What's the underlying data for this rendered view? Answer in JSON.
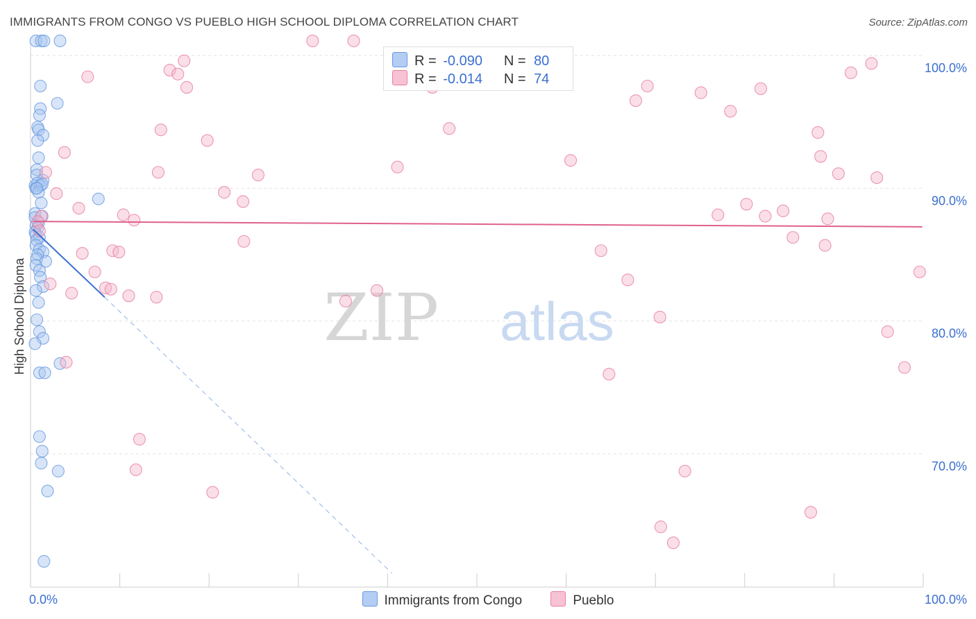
{
  "chart_data": {
    "type": "scatter",
    "title": "IMMIGRANTS FROM CONGO VS PUEBLO HIGH SCHOOL DIPLOMA CORRELATION CHART",
    "source": "Source: ZipAtlas.com",
    "ylabel": "High School Diploma",
    "xlim": [
      0,
      100
    ],
    "ylim": [
      60.5,
      102.5
    ],
    "x_tick_labels": [
      "0.0%",
      "100.0%"
    ],
    "y_ticks": [
      {
        "value": 100,
        "label": "100.0%"
      },
      {
        "value": 90,
        "label": "90.0%"
      },
      {
        "value": 80,
        "label": "80.0%"
      },
      {
        "value": 70,
        "label": "70.0%"
      }
    ],
    "watermark": {
      "zip": "ZIP",
      "atlas": "atlas"
    },
    "stats": [
      {
        "r_label": "R =",
        "r_value": "-0.090",
        "n_label": "N =",
        "n_value": "80"
      },
      {
        "r_label": "R =",
        "r_value": "-0.014",
        "n_label": "N =",
        "n_value": "74"
      }
    ],
    "series": [
      {
        "name": "Immigrants from Congo",
        "color": "#6699e0",
        "fill": "#a9c6f0",
        "trend": {
          "x0": 0.3,
          "y0": 86.9,
          "x1": 8.3,
          "y1": 81.8,
          "dash_x1": 40.5,
          "dash_y1": 61.0,
          "color": "#3a6fd0"
        },
        "points": [
          [
            0.6,
            101.1
          ],
          [
            1.2,
            101.1
          ],
          [
            1.5,
            101.1
          ],
          [
            3.3,
            101.1
          ],
          [
            1.1,
            97.7
          ],
          [
            3.0,
            96.4
          ],
          [
            1.1,
            96.0
          ],
          [
            1.0,
            95.5
          ],
          [
            0.8,
            94.6
          ],
          [
            0.9,
            94.4
          ],
          [
            1.4,
            94.0
          ],
          [
            0.8,
            93.6
          ],
          [
            0.9,
            92.3
          ],
          [
            0.7,
            91.4
          ],
          [
            0.7,
            91.0
          ],
          [
            1.4,
            90.6
          ],
          [
            0.5,
            90.2
          ],
          [
            0.8,
            90.4
          ],
          [
            0.6,
            90.0
          ],
          [
            1.1,
            90.2
          ],
          [
            1.3,
            90.3
          ],
          [
            0.9,
            89.7
          ],
          [
            0.7,
            90.0
          ],
          [
            7.6,
            89.2
          ],
          [
            1.2,
            88.9
          ],
          [
            0.5,
            88.1
          ],
          [
            0.5,
            87.8
          ],
          [
            1.3,
            87.9
          ],
          [
            0.9,
            87.4
          ],
          [
            0.6,
            87.2
          ],
          [
            0.8,
            87.0
          ],
          [
            0.5,
            86.7
          ],
          [
            0.6,
            86.5
          ],
          [
            1.0,
            86.3
          ],
          [
            0.7,
            86.1
          ],
          [
            0.6,
            85.7
          ],
          [
            1.0,
            85.4
          ],
          [
            1.4,
            85.2
          ],
          [
            0.8,
            85.0
          ],
          [
            0.7,
            84.7
          ],
          [
            1.7,
            84.5
          ],
          [
            0.6,
            84.2
          ],
          [
            1.0,
            83.8
          ],
          [
            1.1,
            83.3
          ],
          [
            1.4,
            82.6
          ],
          [
            0.6,
            82.3
          ],
          [
            0.9,
            81.4
          ],
          [
            0.7,
            80.1
          ],
          [
            1.0,
            79.2
          ],
          [
            1.4,
            78.7
          ],
          [
            0.5,
            78.3
          ],
          [
            1.0,
            76.1
          ],
          [
            1.6,
            76.1
          ],
          [
            3.3,
            76.8
          ],
          [
            1.0,
            71.3
          ],
          [
            1.3,
            70.2
          ],
          [
            1.2,
            69.3
          ],
          [
            3.1,
            68.7
          ],
          [
            1.9,
            67.2
          ],
          [
            1.5,
            61.9
          ]
        ]
      },
      {
        "name": "Pueblo",
        "color": "#e87ea0",
        "fill": "#f5b9cd",
        "trend": {
          "x0": 0.3,
          "y0": 87.5,
          "x1": 99.9,
          "y1": 87.1,
          "color": "#e0608c"
        },
        "points": [
          [
            31.6,
            101.1
          ],
          [
            36.2,
            101.1
          ],
          [
            17.2,
            99.6
          ],
          [
            15.6,
            98.9
          ],
          [
            16.5,
            98.6
          ],
          [
            6.4,
            98.4
          ],
          [
            17.5,
            97.6
          ],
          [
            69.1,
            97.7
          ],
          [
            91.9,
            98.7
          ],
          [
            94.2,
            99.4
          ],
          [
            75.1,
            97.2
          ],
          [
            81.8,
            97.5
          ],
          [
            45.0,
            97.6
          ],
          [
            67.8,
            96.6
          ],
          [
            78.4,
            95.8
          ],
          [
            46.9,
            94.5
          ],
          [
            14.6,
            94.4
          ],
          [
            88.2,
            94.2
          ],
          [
            19.8,
            93.6
          ],
          [
            3.8,
            92.7
          ],
          [
            60.5,
            92.1
          ],
          [
            88.5,
            92.4
          ],
          [
            41.1,
            91.6
          ],
          [
            14.3,
            91.2
          ],
          [
            25.5,
            91.0
          ],
          [
            90.5,
            91.1
          ],
          [
            94.8,
            90.8
          ],
          [
            1.7,
            91.2
          ],
          [
            2.9,
            89.6
          ],
          [
            21.7,
            89.7
          ],
          [
            23.8,
            89.0
          ],
          [
            80.2,
            88.8
          ],
          [
            5.4,
            88.5
          ],
          [
            84.3,
            88.3
          ],
          [
            1.2,
            87.9
          ],
          [
            10.4,
            88.0
          ],
          [
            11.6,
            87.6
          ],
          [
            77.0,
            88.0
          ],
          [
            82.3,
            87.9
          ],
          [
            89.3,
            87.7
          ],
          [
            0.8,
            87.5
          ],
          [
            85.4,
            86.3
          ],
          [
            1.0,
            86.8
          ],
          [
            23.9,
            86.0
          ],
          [
            89.0,
            85.7
          ],
          [
            9.2,
            85.3
          ],
          [
            9.9,
            85.2
          ],
          [
            5.8,
            85.1
          ],
          [
            63.9,
            85.3
          ],
          [
            7.2,
            83.7
          ],
          [
            99.6,
            83.7
          ],
          [
            66.9,
            83.1
          ],
          [
            2.2,
            82.8
          ],
          [
            8.4,
            82.5
          ],
          [
            9.0,
            82.4
          ],
          [
            38.8,
            82.3
          ],
          [
            4.6,
            82.1
          ],
          [
            11.0,
            81.9
          ],
          [
            14.1,
            81.8
          ],
          [
            35.3,
            81.5
          ],
          [
            70.5,
            80.3
          ],
          [
            96.0,
            79.2
          ],
          [
            4.0,
            76.9
          ],
          [
            64.8,
            76.0
          ],
          [
            97.9,
            76.5
          ],
          [
            12.2,
            71.1
          ],
          [
            11.8,
            68.8
          ],
          [
            20.4,
            67.1
          ],
          [
            73.3,
            68.7
          ],
          [
            87.4,
            65.6
          ],
          [
            70.6,
            64.5
          ],
          [
            72.0,
            63.3
          ]
        ]
      }
    ]
  }
}
